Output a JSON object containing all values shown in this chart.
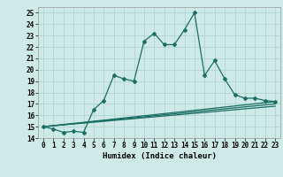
{
  "xlabel": "Humidex (Indice chaleur)",
  "background_color": "#ceeae7",
  "grid_color": "#b0d4d0",
  "line_color": "#1a6e62",
  "xlim": [
    -0.5,
    23.5
  ],
  "ylim": [
    14,
    25.5
  ],
  "yticks": [
    14,
    15,
    16,
    17,
    18,
    19,
    20,
    21,
    22,
    23,
    24,
    25
  ],
  "xtick_labels": [
    "0",
    "1",
    "2",
    "3",
    "4",
    "5",
    "6",
    "7",
    "8",
    "9",
    "10",
    "11",
    "12",
    "13",
    "14",
    "15",
    "16",
    "17",
    "18",
    "19",
    "20",
    "21",
    "22",
    "23"
  ],
  "main_series": {
    "x": [
      0,
      1,
      2,
      3,
      4,
      5,
      6,
      7,
      8,
      9,
      10,
      11,
      12,
      13,
      14,
      15,
      16,
      17,
      18,
      19,
      20,
      21,
      22,
      23
    ],
    "y": [
      15.0,
      14.8,
      14.5,
      14.6,
      14.5,
      16.5,
      17.3,
      19.5,
      19.2,
      19.0,
      22.5,
      23.2,
      22.2,
      22.2,
      23.5,
      25.0,
      19.5,
      20.8,
      19.2,
      17.8,
      17.5,
      17.5,
      17.3,
      17.2
    ]
  },
  "diagonal_lines": [
    [
      15.0,
      17.2
    ],
    [
      15.0,
      17.0
    ],
    [
      15.0,
      16.8
    ]
  ],
  "tick_fontsize": 5.5,
  "xlabel_fontsize": 6.5
}
